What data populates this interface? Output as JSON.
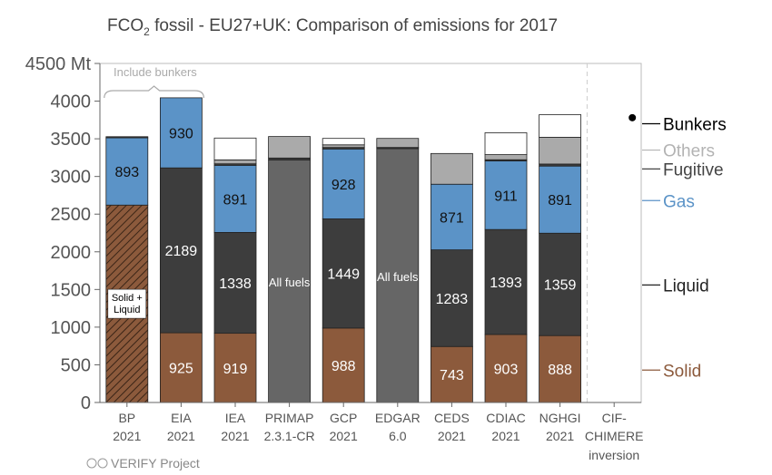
{
  "chart_data": {
    "type": "bar",
    "stacked": true,
    "title_main": "FCO",
    "title_sub": "2",
    "title_rest": " fossil - EU27+UK: Comparison of emissions for 2017",
    "y_unit_label": "4500 Mt",
    "ylim": [
      0,
      4500
    ],
    "yticks": [
      0,
      500,
      1000,
      1500,
      2000,
      2500,
      3000,
      3500,
      4000
    ],
    "grid": false,
    "bunkers_note": "Include bunkers",
    "credit": "VERIFY Project",
    "categories": [
      {
        "line1": "BP",
        "line2": "2021"
      },
      {
        "line1": "EIA",
        "line2": "2021"
      },
      {
        "line1": "IEA",
        "line2": "2021"
      },
      {
        "line1": "PRIMAP",
        "line2": "2.3.1-CR"
      },
      {
        "line1": "GCP",
        "line2": "2021"
      },
      {
        "line1": "EDGAR",
        "line2": "6.0"
      },
      {
        "line1": "CEDS",
        "line2": "2021"
      },
      {
        "line1": "CDIAC",
        "line2": "2021"
      },
      {
        "line1": "NGHGI",
        "line2": "2021"
      },
      {
        "line1": "CIF-",
        "line2": "CHIMERE",
        "line3": "inversion"
      }
    ],
    "legend": [
      {
        "key": "bunkers",
        "label": "Bunkers",
        "color": "#000000",
        "line_color": "#000000",
        "y": 3700
      },
      {
        "key": "others",
        "label": "Others",
        "color": "#b3b3b3",
        "line_color": "#b3b3b3",
        "y": 3350
      },
      {
        "key": "fugitive",
        "label": "Fugitive",
        "color": "#444444",
        "line_color": "#444444",
        "y": 3100
      },
      {
        "key": "gas",
        "label": "Gas",
        "color": "#5b93c7",
        "line_color": "#5b93c7",
        "y": 2680
      },
      {
        "key": "liquid",
        "label": "Liquid",
        "color": "#222222",
        "line_color": "#222222",
        "y": 1560
      },
      {
        "key": "solid",
        "label": "Solid",
        "color": "#8c5a3c",
        "line_color": "#8c5a3c",
        "y": 430
      }
    ],
    "bars": [
      {
        "segments": [
          {
            "type": "solid_liquid",
            "start": 0,
            "end": 2620,
            "label": "Solid +\nLiquid"
          },
          {
            "type": "gas",
            "start": 2620,
            "end": 3513,
            "label": "893"
          },
          {
            "type": "fugitive",
            "start": 3513,
            "end": 3528,
            "label": ""
          }
        ]
      },
      {
        "segments": [
          {
            "type": "solid",
            "start": 0,
            "end": 925,
            "label": "925"
          },
          {
            "type": "liquid",
            "start": 925,
            "end": 3114,
            "label": "2189"
          },
          {
            "type": "gas",
            "start": 3114,
            "end": 4044,
            "label": "930"
          }
        ]
      },
      {
        "segments": [
          {
            "type": "solid",
            "start": 0,
            "end": 919,
            "label": "919"
          },
          {
            "type": "liquid",
            "start": 919,
            "end": 2257,
            "label": "1338"
          },
          {
            "type": "gas",
            "start": 2257,
            "end": 3148,
            "label": "891"
          },
          {
            "type": "fugitive",
            "start": 3148,
            "end": 3168,
            "label": ""
          },
          {
            "type": "others",
            "start": 3168,
            "end": 3220,
            "label": ""
          },
          {
            "type": "bunkers",
            "start": 3220,
            "end": 3510,
            "label": ""
          }
        ]
      },
      {
        "segments": [
          {
            "type": "allfuels",
            "start": 0,
            "end": 3220,
            "label": "All fuels"
          },
          {
            "type": "fugitive",
            "start": 3220,
            "end": 3245,
            "label": ""
          },
          {
            "type": "others",
            "start": 3245,
            "end": 3530,
            "label": ""
          }
        ]
      },
      {
        "segments": [
          {
            "type": "solid",
            "start": 0,
            "end": 988,
            "label": "988"
          },
          {
            "type": "liquid",
            "start": 988,
            "end": 2437,
            "label": "1449"
          },
          {
            "type": "gas",
            "start": 2437,
            "end": 3365,
            "label": "928"
          },
          {
            "type": "fugitive",
            "start": 3365,
            "end": 3385,
            "label": ""
          },
          {
            "type": "others",
            "start": 3385,
            "end": 3420,
            "label": ""
          },
          {
            "type": "bunkers",
            "start": 3420,
            "end": 3505,
            "label": ""
          }
        ]
      },
      {
        "segments": [
          {
            "type": "allfuels",
            "start": 0,
            "end": 3370,
            "label": "All fuels"
          },
          {
            "type": "fugitive",
            "start": 3370,
            "end": 3385,
            "label": ""
          },
          {
            "type": "others",
            "start": 3385,
            "end": 3505,
            "label": ""
          }
        ]
      },
      {
        "segments": [
          {
            "type": "solid",
            "start": 0,
            "end": 743,
            "label": "743"
          },
          {
            "type": "liquid",
            "start": 743,
            "end": 2026,
            "label": "1283"
          },
          {
            "type": "gas",
            "start": 2026,
            "end": 2897,
            "label": "871"
          },
          {
            "type": "others",
            "start": 2897,
            "end": 3305,
            "label": ""
          }
        ]
      },
      {
        "segments": [
          {
            "type": "solid",
            "start": 0,
            "end": 903,
            "label": "903"
          },
          {
            "type": "liquid",
            "start": 903,
            "end": 2296,
            "label": "1393"
          },
          {
            "type": "gas",
            "start": 2296,
            "end": 3207,
            "label": "911"
          },
          {
            "type": "fugitive",
            "start": 3207,
            "end": 3222,
            "label": ""
          },
          {
            "type": "others",
            "start": 3222,
            "end": 3290,
            "label": ""
          },
          {
            "type": "bunkers",
            "start": 3290,
            "end": 3580,
            "label": ""
          }
        ]
      },
      {
        "segments": [
          {
            "type": "solid",
            "start": 0,
            "end": 888,
            "label": "888"
          },
          {
            "type": "liquid",
            "start": 888,
            "end": 2247,
            "label": "1359"
          },
          {
            "type": "gas",
            "start": 2247,
            "end": 3138,
            "label": "891"
          },
          {
            "type": "fugitive",
            "start": 3138,
            "end": 3165,
            "label": ""
          },
          {
            "type": "others",
            "start": 3165,
            "end": 3520,
            "label": ""
          },
          {
            "type": "bunkers",
            "start": 3520,
            "end": 3820,
            "label": ""
          }
        ]
      },
      {
        "segments": [],
        "point": 3780
      }
    ]
  }
}
